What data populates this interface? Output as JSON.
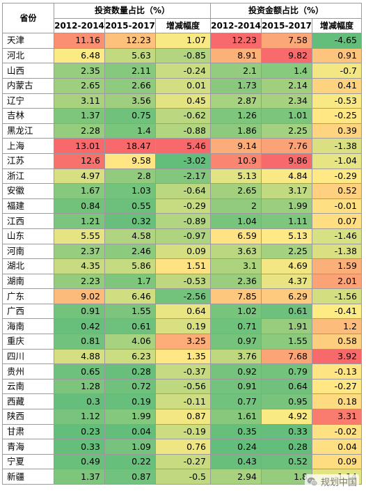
{
  "table": {
    "header_top": {
      "province": "省份",
      "count_group": "投资数量占比（%）",
      "amount_group": "投资金额占比（%）"
    },
    "header_sub": [
      "2012-2014",
      "2015-2017",
      "增减幅度",
      "2012-2014",
      "2015-2017",
      "增减幅度"
    ],
    "rows": [
      [
        "天津",
        "11.16",
        "12.23",
        "1.07",
        "12.23",
        "7.58",
        "-4.65"
      ],
      [
        "河北",
        "6.48",
        "5.63",
        "-0.85",
        "8.91",
        "9.82",
        "0.91"
      ],
      [
        "山西",
        "2.35",
        "2.11",
        "-0.24",
        "2.1",
        "1.4",
        "-0.7"
      ],
      [
        "内蒙古",
        "2.65",
        "2.66",
        "0.01",
        "1.73",
        "2.14",
        "0.41"
      ],
      [
        "辽宁",
        "3.11",
        "3.56",
        "0.45",
        "2.87",
        "2.34",
        "-0.53"
      ],
      [
        "吉林",
        "1.37",
        "0.75",
        "-0.62",
        "1.26",
        "1.01",
        "-0.25"
      ],
      [
        "黑龙江",
        "2.28",
        "1.4",
        "-0.88",
        "1.86",
        "2.25",
        "0.39"
      ],
      [
        "上海",
        "13.01",
        "18.47",
        "5.46",
        "9.14",
        "7.76",
        "-1.38"
      ],
      [
        "江苏",
        "12.6",
        "9.58",
        "-3.02",
        "10.9",
        "9.86",
        "-1.04"
      ],
      [
        "浙江",
        "4.97",
        "2.8",
        "-2.17",
        "5.13",
        "4.84",
        "-0.29"
      ],
      [
        "安徽",
        "1.67",
        "1.03",
        "-0.64",
        "2.65",
        "3.17",
        "0.52"
      ],
      [
        "福建",
        "0.84",
        "0.55",
        "-0.29",
        "2",
        "1.99",
        "-0.01"
      ],
      [
        "江西",
        "1.21",
        "0.32",
        "-0.89",
        "1.04",
        "1.11",
        "0.07"
      ],
      [
        "山东",
        "5.55",
        "4.58",
        "-0.97",
        "6.59",
        "5.13",
        "-1.46"
      ],
      [
        "河南",
        "2.37",
        "2.46",
        "0.09",
        "3.63",
        "2.25",
        "-1.38"
      ],
      [
        "湖北",
        "4.35",
        "5.86",
        "1.51",
        "3.1",
        "4.69",
        "1.59"
      ],
      [
        "湖南",
        "2.23",
        "1.7",
        "-0.53",
        "2.36",
        "4.37",
        "2.01"
      ],
      [
        "广东",
        "9.02",
        "6.46",
        "-2.56",
        "7.85",
        "6.29",
        "-1.56"
      ],
      [
        "广西",
        "0.91",
        "1.55",
        "0.64",
        "1.02",
        "0.61",
        "-0.41"
      ],
      [
        "海南",
        "0.42",
        "0.61",
        "0.19",
        "0.71",
        "1.91",
        "1.2"
      ],
      [
        "重庆",
        "0.81",
        "4.06",
        "3.25",
        "0.97",
        "1.55",
        "0.58"
      ],
      [
        "四川",
        "4.88",
        "6.23",
        "1.35",
        "3.76",
        "7.68",
        "3.92"
      ],
      [
        "贵州",
        "0.65",
        "0.28",
        "-0.37",
        "0.92",
        "0.79",
        "-0.13"
      ],
      [
        "云南",
        "1.28",
        "0.72",
        "-0.56",
        "0.91",
        "0.64",
        "-0.27"
      ],
      [
        "西藏",
        "0.3",
        "0.19",
        "-0.11",
        "0.77",
        "0.95",
        "0.18"
      ],
      [
        "陕西",
        "1.12",
        "1.99",
        "0.87",
        "1.61",
        "4.92",
        "3.31"
      ],
      [
        "甘肃",
        "0.23",
        "0.04",
        "-0.19",
        "0.35",
        "0.33",
        "-0.02"
      ],
      [
        "青海",
        "0.33",
        "1.09",
        "0.76",
        "0.24",
        "0.28",
        "0.04"
      ],
      [
        "宁夏",
        "0.49",
        "0.22",
        "-0.27",
        "0.43",
        "0.52",
        "0.09"
      ],
      [
        "新疆",
        "1.37",
        "0.87",
        "-0.5",
        "2.94",
        "1.8",
        "-1.14"
      ]
    ]
  },
  "colors": {
    "low": "#63be7b",
    "mid": "#ffeb84",
    "high": "#f8696b"
  },
  "watermark": {
    "icon": "wechat-icon",
    "text": "规划中国"
  }
}
